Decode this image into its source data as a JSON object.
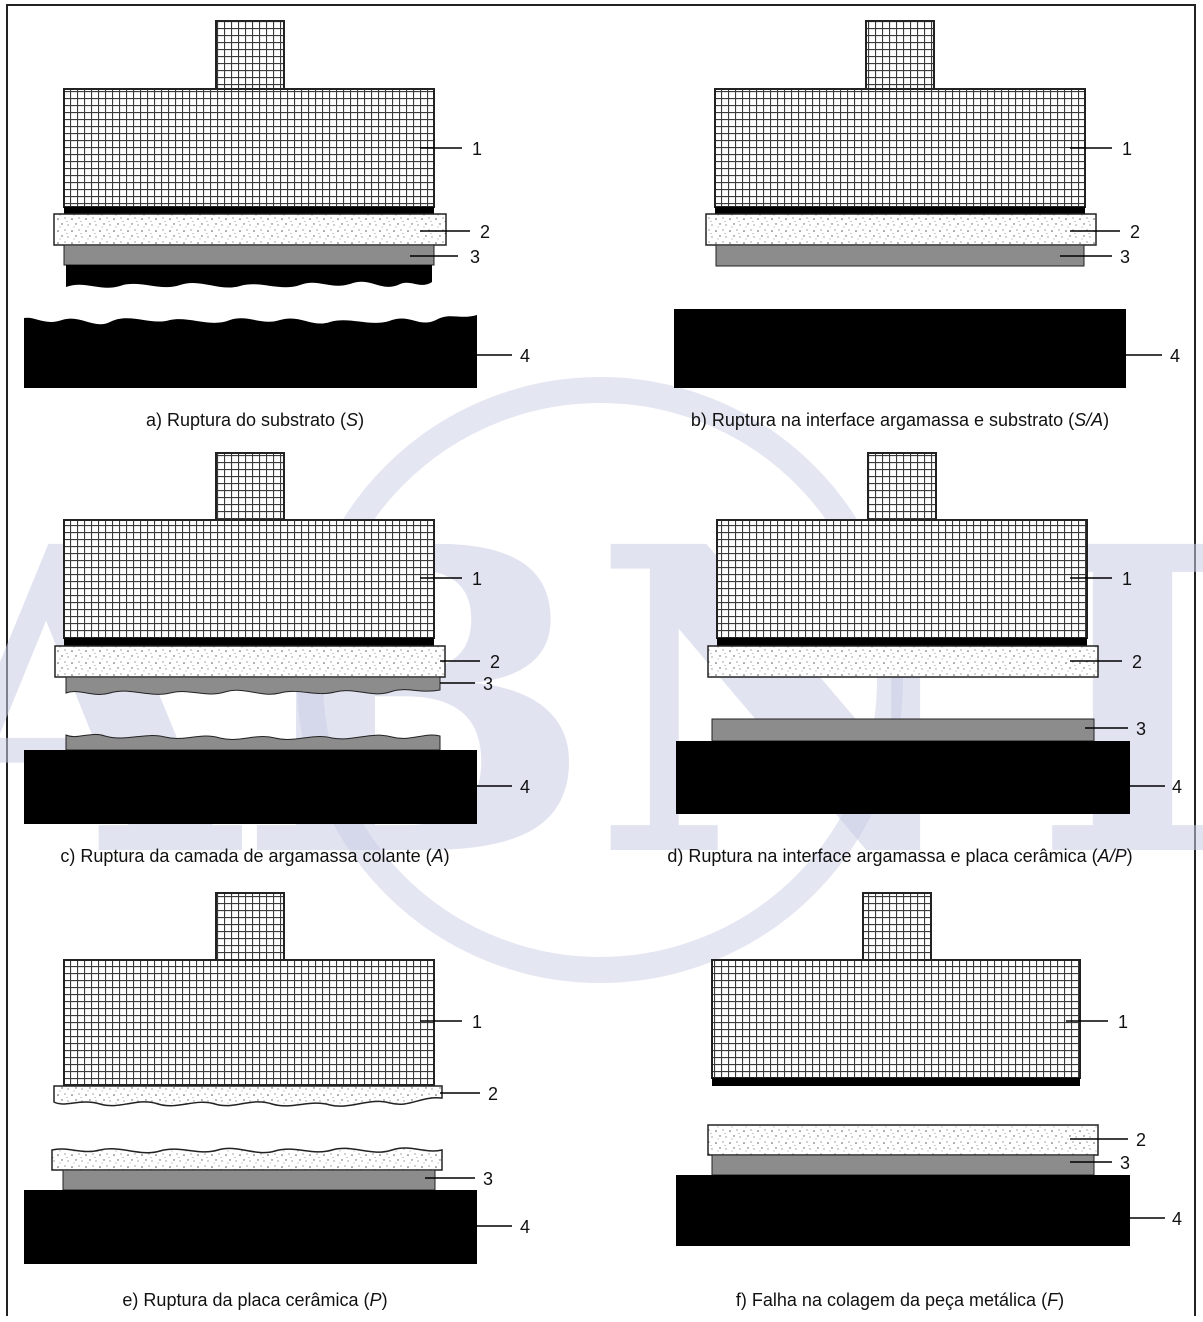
{
  "watermark": "ABNT",
  "panels": [
    {
      "id": "a",
      "caption_pre": "a) Ruptura do substrato (",
      "caption_code": "S",
      "caption_post": ")",
      "labels": [
        "1",
        "2",
        "3",
        "4"
      ]
    },
    {
      "id": "b",
      "caption_pre": "b) Ruptura na interface argamassa e substrato (",
      "caption_code": "S/A",
      "caption_post": ")",
      "labels": [
        "1",
        "2",
        "3",
        "4"
      ]
    },
    {
      "id": "c",
      "caption_pre": "c) Ruptura da camada de argamassa colante (",
      "caption_code": "A",
      "caption_post": ")",
      "labels": [
        "1",
        "2",
        "3",
        "4"
      ]
    },
    {
      "id": "d",
      "caption_pre": "d) Ruptura na interface argamassa e placa cerâmica (",
      "caption_code": "A/P",
      "caption_post": ")",
      "labels": [
        "1",
        "2",
        "3",
        "4"
      ]
    },
    {
      "id": "e",
      "caption_pre": "e) Ruptura da placa cerâmica (",
      "caption_code": "P",
      "caption_post": ")",
      "labels": [
        "1",
        "2",
        "3",
        "4"
      ]
    },
    {
      "id": "f",
      "caption_pre": "f) Falha na colagem da peça metálica (",
      "caption_code": "F",
      "caption_post": ")",
      "labels": [
        "1",
        "2",
        "3",
        "4"
      ]
    }
  ],
  "colors": {
    "substrate": "#000000",
    "tile": "#8c8c8c",
    "grid_bg": "#ffffff",
    "grid_line": "#444444",
    "mortar_dot": "#555555",
    "watermark": "#c9cde6"
  }
}
